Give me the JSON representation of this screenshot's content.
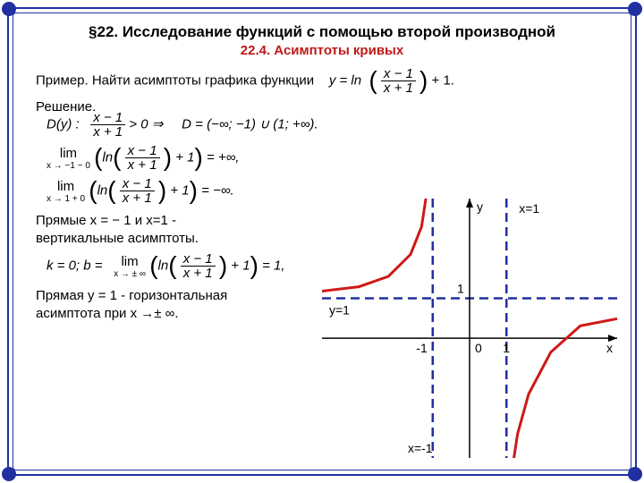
{
  "title": "§22. Исследование функций с помощью второй производной",
  "subtitle": "22.4. Асимптоты кривых",
  "example_line": "Пример. Найти асимптоты  графика функции",
  "solution_label": "Решение.",
  "formula_y": "y = ln",
  "formula_frac_n": "x − 1",
  "formula_frac_d": "x + 1",
  "formula_tail": " + 1.",
  "domain_lhs": "D(y) :",
  "domain_cond": " > 0 ⇒",
  "domain_result": "D = (−∞; −1) ∪ (1; +∞).",
  "lim1_under": "x → −1 − 0",
  "lim1_result": " = +∞,",
  "lim2_under": "x → 1 + 0",
  "lim2_result": " = −∞.",
  "vert_text1": "Прямые  x = − 1  и x=1  -",
  "vert_text2": "вертикальные асимптоты.",
  "kb_lhs": "k = 0;    b =",
  "kb_under": "x → ± ∞",
  "kb_result": " = 1,",
  "horiz_text1": "Прямая  y = 1 - горизонтальная",
  "horiz_text2": "асимптота при  x →± ∞.",
  "graph": {
    "axis_color": "#000000",
    "asymptote_color": "#2030a0",
    "curve_color": "#d01818",
    "background": "#ffffff",
    "xrange": [
      -4,
      4
    ],
    "yrange": [
      -3,
      3.5
    ],
    "vert_asymptotes_x": [
      -1,
      1
    ],
    "horiz_asymptote_y": 1,
    "labels": {
      "y": "y",
      "x": "x",
      "x_eq_1": "x=1",
      "x_eq_m1": "x=-1",
      "y_eq_1": "y=1",
      "one": "1",
      "m_one": "-1",
      "zero": "0"
    },
    "curve_left": [
      [
        -4,
        1.18
      ],
      [
        -3,
        1.29
      ],
      [
        -2.2,
        1.55
      ],
      [
        -1.6,
        2.1
      ],
      [
        -1.3,
        2.8
      ],
      [
        -1.12,
        3.9
      ]
    ],
    "curve_right": [
      [
        1.12,
        -3.5
      ],
      [
        1.3,
        -2.4
      ],
      [
        1.6,
        -1.4
      ],
      [
        2.2,
        -0.35
      ],
      [
        3,
        0.31
      ],
      [
        4,
        0.49
      ]
    ]
  }
}
